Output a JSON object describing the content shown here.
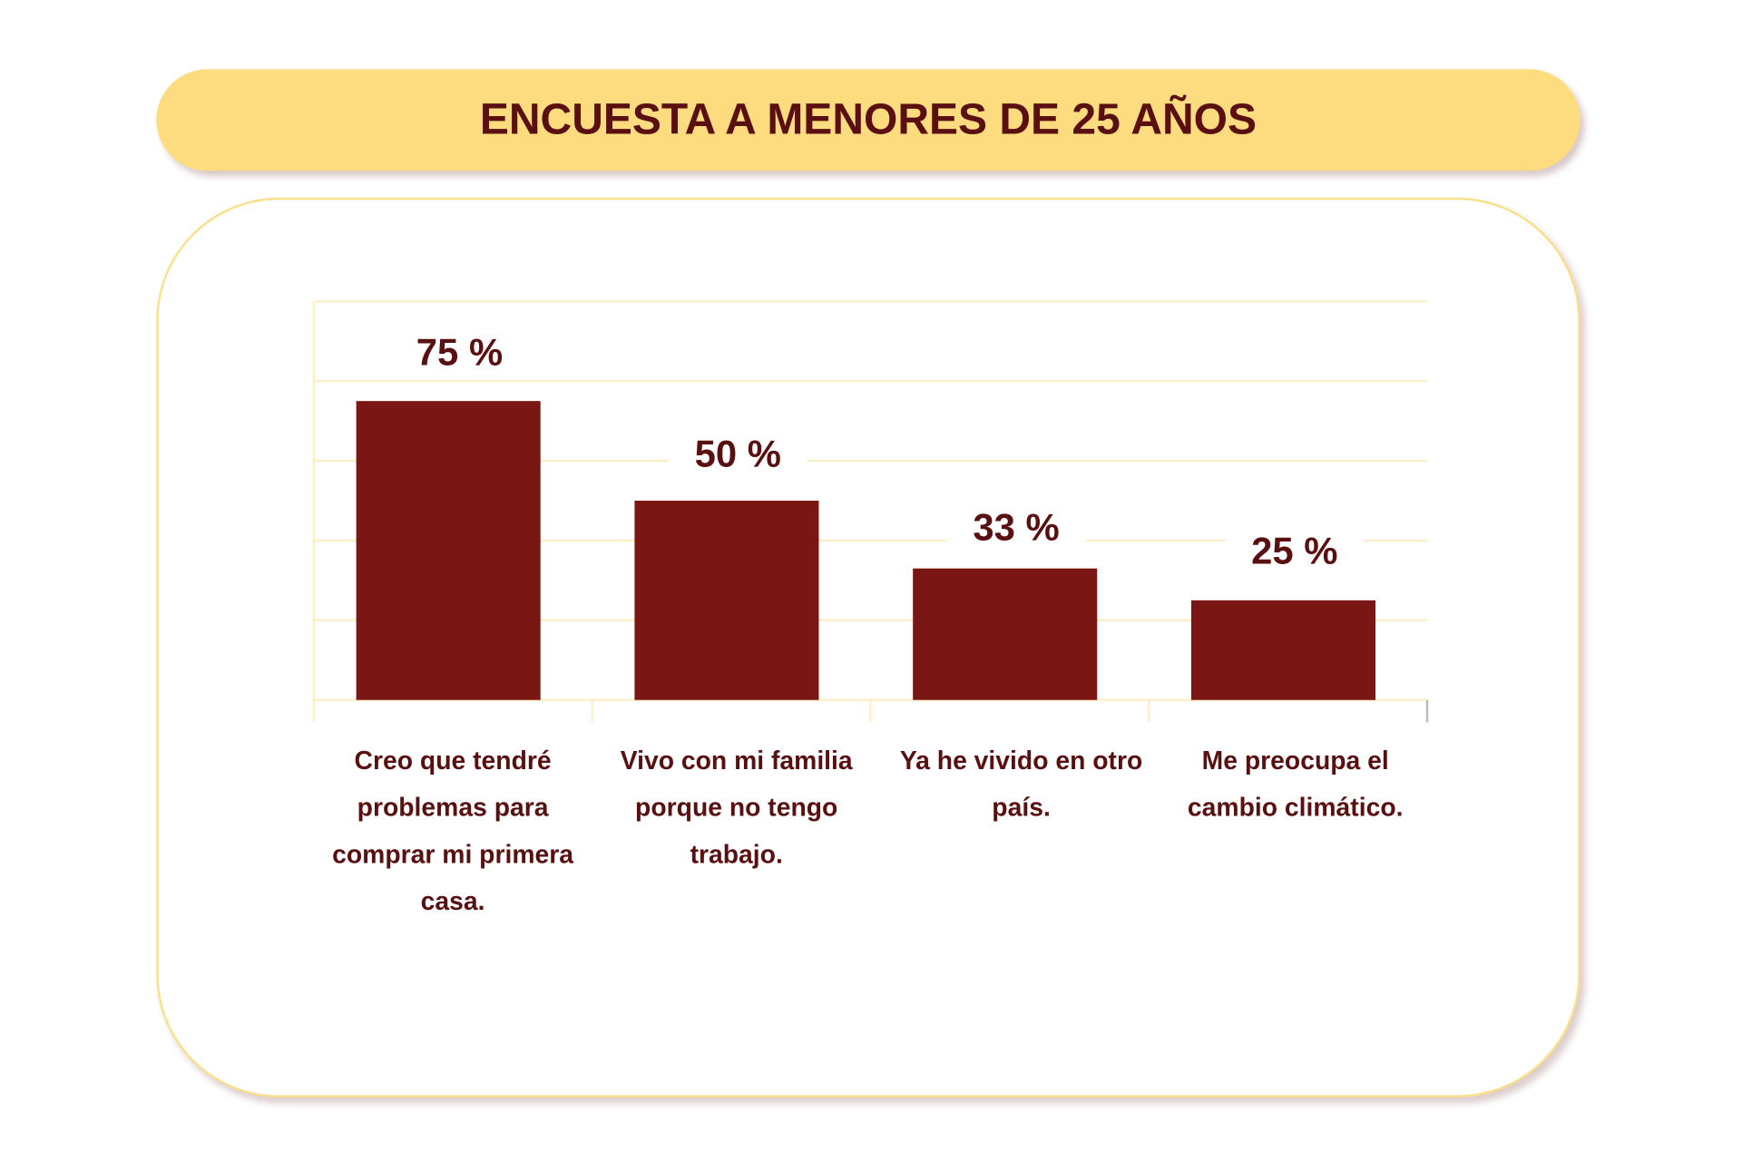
{
  "header": {
    "title": "ENCUESTA A MENORES DE 25 AÑOS"
  },
  "colors": {
    "bar": "#7a1614",
    "text": "#5a1010",
    "accent": "#fddc80",
    "grid": "#fdf0c8"
  },
  "chart_data": {
    "type": "bar",
    "title": "ENCUESTA A MENORES DE 25 AÑOS",
    "categories": [
      "Creo que tendré problemas para comprar mi primera casa.",
      "Vivo con mi familia porque no tengo trabajo.",
      "Ya he vivido en otro país.",
      "Me preocupa el cambio climático."
    ],
    "values": [
      75,
      50,
      33,
      25
    ],
    "data_labels": [
      "75 %",
      "50 %",
      "33 %",
      "25 %"
    ],
    "xlabel": "",
    "ylabel": "",
    "ylim": [
      0,
      100
    ],
    "grid": true
  }
}
